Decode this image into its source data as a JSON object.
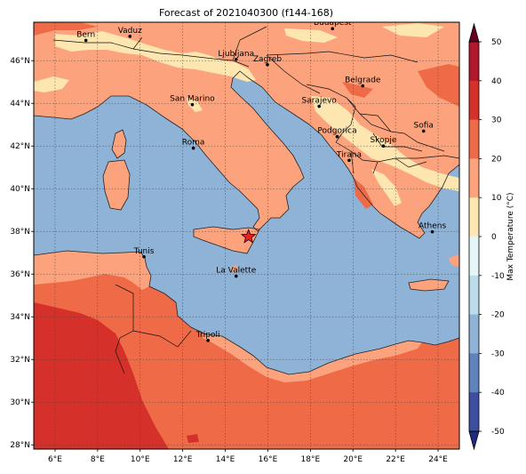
{
  "title": "Forecast of 2021040300 (f144-168)",
  "colorbar": {
    "label": "Max Temperature (°C)",
    "ticks": [
      "50",
      "40",
      "30",
      "20",
      "10",
      "0",
      "-10",
      "-20",
      "-30",
      "-40",
      "-50"
    ],
    "extend": "both",
    "colors": [
      "#67001f",
      "#b2182b",
      "#d6302a",
      "#ef6b48",
      "#fca37d",
      "#fde6b0",
      "#e6f5f5",
      "#bcdceb",
      "#8fb3d7",
      "#5f83bd",
      "#3f4fa0",
      "#1f2a80"
    ]
  },
  "map": {
    "lon_ticks": [
      "6°E",
      "8°E",
      "10°E",
      "12°E",
      "14°E",
      "16°E",
      "18°E",
      "20°E",
      "22°E",
      "24°E"
    ],
    "lat_ticks": [
      "46°N",
      "44°N",
      "42°N",
      "40°N",
      "38°N",
      "36°N",
      "34°N",
      "32°N",
      "30°N",
      "28°N"
    ],
    "lon_range": [
      5,
      25
    ],
    "lat_range": [
      27.8,
      47.8
    ],
    "grid": true,
    "cities": [
      {
        "name": "Bern",
        "lon": 7.45,
        "lat": 46.95
      },
      {
        "name": "Vaduz",
        "lon": 9.52,
        "lat": 47.14
      },
      {
        "name": "Budapest",
        "lon": 19.04,
        "lat": 47.5
      },
      {
        "name": "Ljubljana",
        "lon": 14.51,
        "lat": 46.06
      },
      {
        "name": "Zagreb",
        "lon": 15.98,
        "lat": 45.81
      },
      {
        "name": "Belgrade",
        "lon": 20.46,
        "lat": 44.82
      },
      {
        "name": "San Marino",
        "lon": 12.45,
        "lat": 43.94
      },
      {
        "name": "Sarajevo",
        "lon": 18.41,
        "lat": 43.86
      },
      {
        "name": "Sofia",
        "lon": 23.32,
        "lat": 42.7
      },
      {
        "name": "Roma",
        "lon": 12.5,
        "lat": 41.9
      },
      {
        "name": "Podgorica",
        "lon": 19.26,
        "lat": 42.44
      },
      {
        "name": "Skopje",
        "lon": 21.43,
        "lat": 42.0
      },
      {
        "name": "Tirana",
        "lon": 19.82,
        "lat": 41.33
      },
      {
        "name": "Athens",
        "lon": 23.73,
        "lat": 37.98
      },
      {
        "name": "Tunis",
        "lon": 10.18,
        "lat": 36.81
      },
      {
        "name": "La Valette",
        "lon": 14.51,
        "lat": 35.9
      },
      {
        "name": "Tripoli",
        "lon": 13.19,
        "lat": 32.89
      }
    ],
    "marker": {
      "symbol": "star",
      "lon": 15.09,
      "lat": 37.75,
      "color": "#e8202a"
    }
  }
}
